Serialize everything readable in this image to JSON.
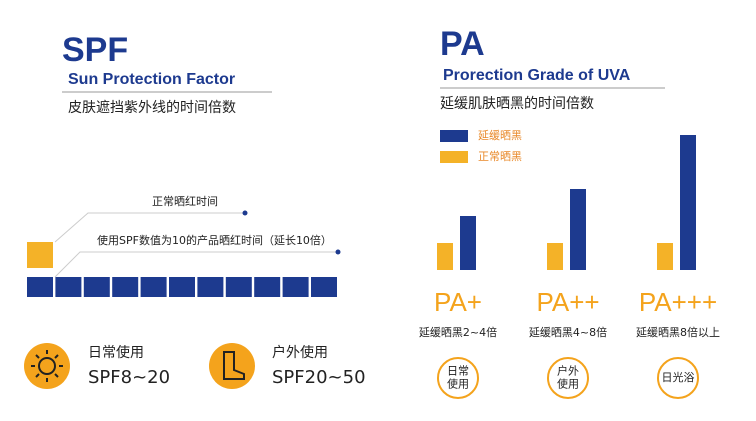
{
  "spf": {
    "title": "SPF",
    "subtitle": "Sun Protection Factor",
    "description": "皮肤遮挡紫外线的时间倍数",
    "note_normal": "正常晒红时间",
    "note_spf": "使用SPF数值为10的产品晒红时间（延长10倍）",
    "uses": [
      {
        "label": "日常使用",
        "range": "SPF8~20"
      },
      {
        "label": "户外使用",
        "range": "SPF20~50"
      }
    ]
  },
  "pa": {
    "title": "PA",
    "subtitle": "Prorection Grade of UVA",
    "description": "延缓肌肤晒黑的时间倍数",
    "legend": {
      "delayed": "延缓晒黑",
      "normal": "正常晒黑"
    },
    "grades": [
      {
        "label": "PA+",
        "note": "延缓晒黑2~4倍",
        "use": [
          "日常",
          "使用"
        ],
        "normal": 1,
        "delayed": 2
      },
      {
        "label": "PA++",
        "note": "延缓晒黑4~8倍",
        "use": [
          "户外",
          "使用"
        ],
        "normal": 1,
        "delayed": 3
      },
      {
        "label": "PA+++",
        "note": "延缓晒黑8倍以上",
        "use": [
          "日光浴"
        ],
        "normal": 1,
        "delayed": 5
      }
    ]
  }
}
